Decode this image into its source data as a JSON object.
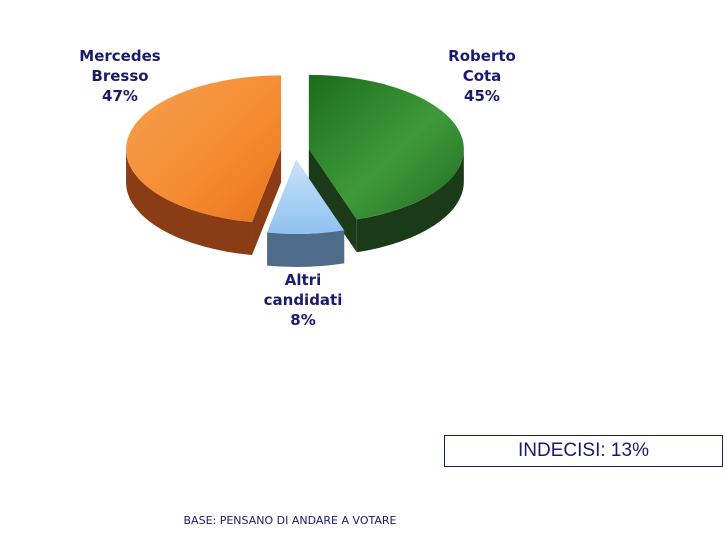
{
  "chart_data": {
    "type": "pie",
    "style": "3d-exploded",
    "slices": [
      {
        "name_lines": [
          "Roberto",
          "Cota"
        ],
        "value": 45,
        "label": "45%",
        "color": "#2e8b2e",
        "side_color": "#1b3a17"
      },
      {
        "name_lines": [
          "Altri",
          "candidati"
        ],
        "value": 8,
        "label": "8%",
        "color": "#9ccaf5",
        "side_color": "#4f6b8a"
      },
      {
        "name_lines": [
          "Mercedes",
          "Bresso"
        ],
        "value": 47,
        "label": "47%",
        "color": "#f58a30",
        "side_color": "#8a3d14"
      }
    ]
  },
  "indecisi_text": "INDECISI: 13%",
  "base_note": "BASE: PENSANO DI ANDARE A VOTARE"
}
